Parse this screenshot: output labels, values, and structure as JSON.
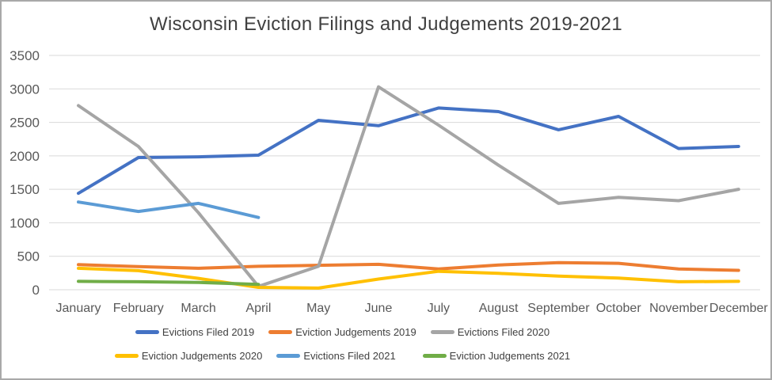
{
  "chart_data": {
    "type": "line",
    "title": "Wisconsin Eviction Filings and Judgements 2019-2021",
    "categories": [
      "January",
      "February",
      "March",
      "April",
      "May",
      "June",
      "July",
      "August",
      "September",
      "October",
      "November",
      "December"
    ],
    "xlabel": "",
    "ylabel": "",
    "ylim": [
      0,
      3500
    ],
    "ytick_step": 500,
    "grid": "horizontal",
    "legend_position": "bottom, two rows",
    "title_color": "#404040",
    "axis_text_color": "#595959",
    "gridline_color": "#d9d9d9",
    "series": [
      {
        "name": "Evictions Filed 2019",
        "color": "#4472C4",
        "values": [
          1440,
          1975,
          1985,
          2010,
          2530,
          2450,
          2715,
          2660,
          2390,
          2590,
          2110,
          2140
        ]
      },
      {
        "name": "Eviction Judgements 2019",
        "color": "#ED7D31",
        "values": [
          375,
          345,
          320,
          350,
          365,
          380,
          310,
          370,
          405,
          395,
          310,
          290
        ]
      },
      {
        "name": "Evictions Filed 2020",
        "color": "#A5A5A5",
        "values": [
          2750,
          2140,
          1150,
          50,
          350,
          3030,
          2460,
          1860,
          1290,
          1380,
          1330,
          1500
        ]
      },
      {
        "name": "Eviction Judgements 2020",
        "color": "#FFC000",
        "values": [
          320,
          285,
          170,
          35,
          25,
          160,
          275,
          245,
          205,
          175,
          120,
          125
        ]
      },
      {
        "name": "Evictions Filed 2021",
        "color": "#5B9BD5",
        "values": [
          1310,
          1170,
          1290,
          1080
        ],
        "ends_at": "April"
      },
      {
        "name": "Eviction Judgements 2021",
        "color": "#70AD47",
        "values": [
          125,
          120,
          110,
          80
        ],
        "ends_at": "April"
      }
    ]
  }
}
